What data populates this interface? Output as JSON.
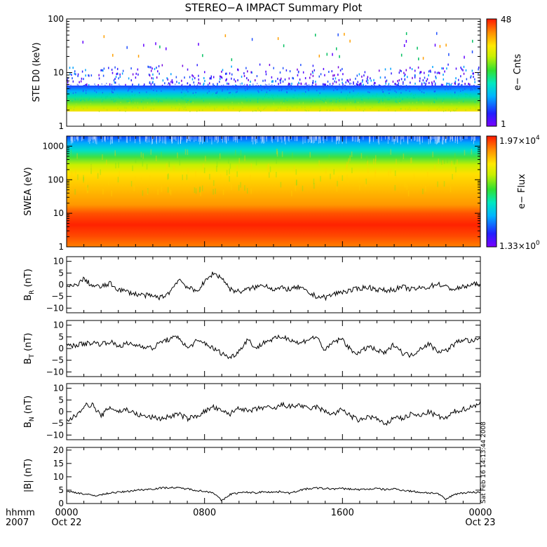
{
  "chart_data": {
    "type": "multi-panel time series",
    "title": "STEREO−A IMPACT Summary Plot",
    "x_axis": {
      "label_line1": "hhmm",
      "label_line2": "2007",
      "ticks": [
        {
          "hhmm": "0000",
          "date": "Oct 22",
          "hours": 0
        },
        {
          "hhmm": "0800",
          "date": "",
          "hours": 8
        },
        {
          "hhmm": "1600",
          "date": "",
          "hours": 16
        },
        {
          "hhmm": "0000",
          "date": "Oct 23",
          "hours": 24
        }
      ],
      "range_hours": [
        0,
        24
      ]
    },
    "footnote": "Sat Feb 16 14:13:44 2008",
    "panels": [
      {
        "id": "ste",
        "type": "heatmap",
        "ylabel": "STE D0 (keV)",
        "yscale": "log",
        "ylim": [
          1,
          100
        ],
        "yticks": [
          "1",
          "10",
          "100"
        ],
        "colorbar": {
          "label": "e− Cnts",
          "min": "1",
          "max": "48"
        }
      },
      {
        "id": "swea",
        "type": "heatmap",
        "ylabel": "SWEA (eV)",
        "yscale": "log",
        "ylim": [
          1,
          2000
        ],
        "yticks": [
          "1",
          "10",
          "100",
          "1000"
        ],
        "colorbar": {
          "label": "e− Flux",
          "min_mant": "1.33",
          "min_exp": "0",
          "max_mant": "1.97",
          "max_exp": "4"
        }
      },
      {
        "id": "br",
        "type": "line",
        "ylabel_main": "B",
        "ylabel_sub": "R",
        "ylabel_unit": " (nT)",
        "ylim": [
          -12,
          12
        ],
        "yticks": [
          "10",
          "5",
          "0",
          "−5",
          "−10"
        ],
        "ytick_values": [
          10,
          5,
          0,
          -5,
          -10
        ],
        "series": [
          {
            "t": [
              0,
              0.5,
              1,
              1.5,
              2,
              2.5,
              3,
              3.5,
              4,
              4.5,
              5,
              5.5,
              6,
              6.5,
              7,
              7.5,
              8,
              8.5,
              9,
              9.5,
              10,
              10.5,
              11,
              11.5,
              12,
              12.5,
              13,
              13.5,
              14,
              14.5,
              15,
              15.5,
              16,
              16.5,
              17,
              17.5,
              18,
              18.5,
              19,
              19.5,
              20,
              20.5,
              21,
              21.5,
              22,
              22.5,
              23,
              23.5,
              24
            ],
            "v": [
              -1,
              -0.5,
              2.5,
              -0.5,
              -1,
              0.5,
              -2,
              -3,
              -4,
              -4.5,
              -5,
              -5.5,
              -3,
              2.5,
              -1,
              -3,
              1,
              5,
              3,
              -2,
              -3,
              -2,
              -1,
              0,
              -2,
              -1.5,
              -2,
              -1,
              -3.5,
              -5,
              -5.5,
              -4,
              -3,
              -2.5,
              -1.5,
              -1,
              -2,
              -2.5,
              -2,
              -1,
              -2,
              -1.5,
              -1,
              0.5,
              -1,
              -2,
              -1,
              0,
              0.5
            ]
          }
        ]
      },
      {
        "id": "bt",
        "type": "line",
        "ylabel_main": "B",
        "ylabel_sub": "T",
        "ylabel_unit": " (nT)",
        "ylim": [
          -12,
          12
        ],
        "yticks": [
          "10",
          "5",
          "0",
          "−5",
          "−10"
        ],
        "ytick_values": [
          10,
          5,
          0,
          -5,
          -10
        ],
        "series": [
          {
            "t": [
              0,
              0.5,
              1,
              1.5,
              2,
              2.5,
              3,
              3.5,
              4,
              4.5,
              5,
              5.5,
              6,
              6.5,
              7,
              7.5,
              8,
              8.5,
              9,
              9.5,
              10,
              10.5,
              11,
              11.5,
              12,
              12.5,
              13,
              13.5,
              14,
              14.5,
              15,
              15.5,
              16,
              16.5,
              17,
              17.5,
              18,
              18.5,
              19,
              19.5,
              20,
              20.5,
              21,
              21.5,
              22,
              22.5,
              23,
              23.5,
              24
            ],
            "v": [
              1,
              1.5,
              2,
              2.5,
              2,
              3,
              1,
              2,
              1.5,
              1,
              0,
              3,
              4,
              5,
              0,
              3,
              2.5,
              0,
              -2,
              -4,
              -1,
              4,
              0,
              3,
              4,
              5,
              4,
              2,
              4,
              5,
              -1,
              3,
              4,
              -1,
              -2,
              1,
              -1,
              -2,
              2,
              -2,
              -3,
              0,
              2,
              -1,
              -1,
              2,
              4,
              3,
              4
            ]
          }
        ]
      },
      {
        "id": "bn",
        "type": "line",
        "ylabel_main": "B",
        "ylabel_sub": "N",
        "ylabel_unit": " (nT)",
        "ylim": [
          -12,
          12
        ],
        "yticks": [
          "10",
          "5",
          "0",
          "−5",
          "−10"
        ],
        "ytick_values": [
          10,
          5,
          0,
          -5,
          -10
        ],
        "series": [
          {
            "t": [
              0,
              0.5,
              1,
              1.5,
              2,
              2.5,
              3,
              3.5,
              4,
              4.5,
              5,
              5.5,
              6,
              6.5,
              7,
              7.5,
              8,
              8.5,
              9,
              9.5,
              10,
              10.5,
              11,
              11.5,
              12,
              12.5,
              13,
              13.5,
              14,
              14.5,
              15,
              15.5,
              16,
              16.5,
              17,
              17.5,
              18,
              18.5,
              19,
              19.5,
              20,
              20.5,
              21,
              21.5,
              22,
              22.5,
              23,
              23.5,
              24
            ],
            "v": [
              -4,
              -2,
              2.5,
              3,
              -2,
              2,
              0,
              1,
              -1,
              -2,
              -2.5,
              -3,
              -2,
              -1,
              -3,
              -2,
              0,
              2,
              0,
              -1,
              2,
              0,
              1,
              2,
              1,
              3,
              2,
              3,
              1,
              2,
              0,
              -1,
              1,
              -2,
              -4,
              -2,
              -3,
              -6,
              -2,
              -3,
              -1,
              -2,
              0,
              -2,
              -3,
              0,
              1,
              2,
              4
            ]
          }
        ]
      },
      {
        "id": "bmag",
        "type": "line",
        "ylabel_main": "|B|",
        "ylabel_sub": "",
        "ylabel_unit": " (nT)",
        "ylim": [
          0,
          21
        ],
        "yticks": [
          "20",
          "15",
          "10",
          "5",
          "0"
        ],
        "ytick_values": [
          20,
          15,
          10,
          5,
          0
        ],
        "series": [
          {
            "t": [
              0,
              0.5,
              1,
              1.5,
              2,
              2.5,
              3,
              3.5,
              4,
              4.5,
              5,
              5.5,
              6,
              6.5,
              7,
              7.5,
              8,
              8.5,
              9,
              9.5,
              10,
              10.5,
              11,
              11.5,
              12,
              12.5,
              13,
              13.5,
              14,
              14.5,
              15,
              15.5,
              16,
              16.5,
              17,
              17.5,
              18,
              18.5,
              19,
              19.5,
              20,
              20.5,
              21,
              21.5,
              22,
              22.5,
              23,
              23.5,
              24
            ],
            "v": [
              4.5,
              4.2,
              3.6,
              3,
              3.2,
              4,
              4.2,
              4.5,
              5,
              5.2,
              5.5,
              5.8,
              6,
              5.8,
              5.5,
              5,
              4.5,
              4.2,
              1,
              3.5,
              4,
              4.2,
              4,
              4.5,
              4.2,
              4.5,
              3.8,
              5,
              5.5,
              5.8,
              5.6,
              5.5,
              5.6,
              5.4,
              5.2,
              5.4,
              5.6,
              5.2,
              5.5,
              5,
              4.6,
              4.2,
              4,
              3.8,
              1.5,
              3.5,
              4,
              4.2,
              4.2
            ]
          }
        ]
      }
    ]
  }
}
